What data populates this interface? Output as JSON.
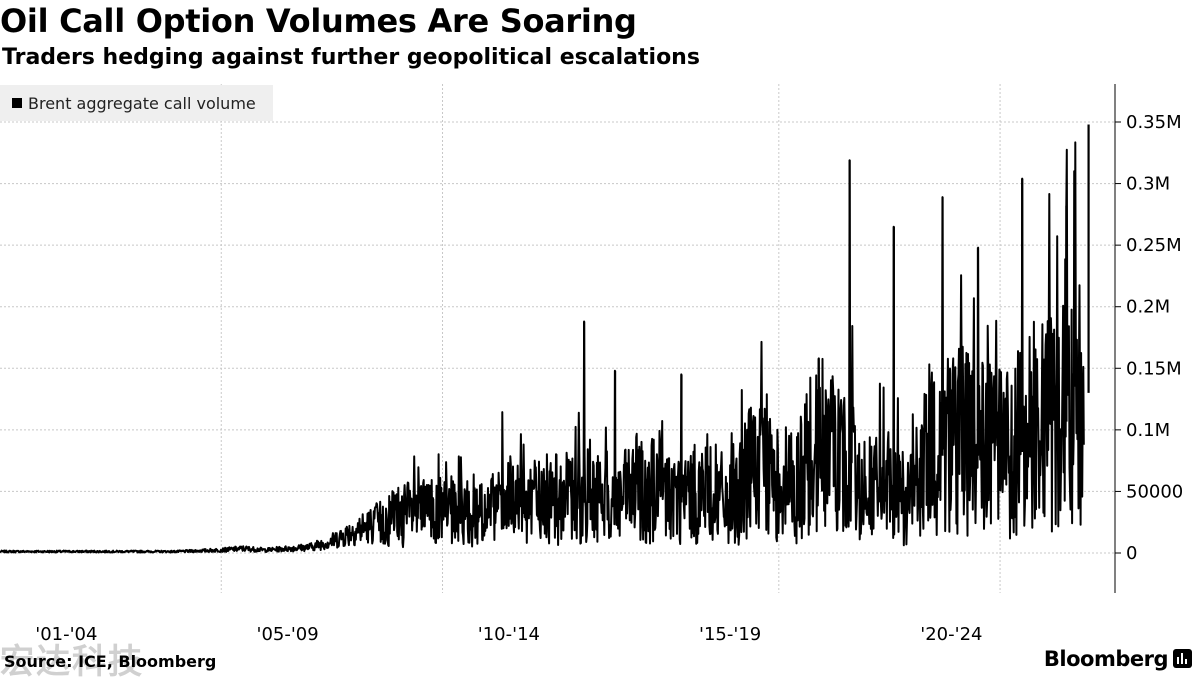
{
  "chart_data": {
    "type": "line",
    "title": "Oil Call Option Volumes Are Soaring",
    "subtitle": "Traders hedging against further geopolitical escalations",
    "xlabel": "",
    "ylabel": "",
    "ylim": [
      0,
      0.35
    ],
    "ytick_values": [
      0,
      0.05,
      0.1,
      0.15,
      0.2,
      0.25,
      0.3,
      0.35
    ],
    "yticks": [
      "0",
      "50000",
      "0.1M",
      "0.15M",
      "0.2M",
      "0.25M",
      "0.3M",
      "0.35M"
    ],
    "xlim": [
      2001.0,
      2025.7
    ],
    "xtick_values": [
      2002.5,
      2007.5,
      2012.5,
      2017.5,
      2022.5
    ],
    "xticks": [
      "'01-'04",
      "'05-'09",
      "'10-'14",
      "'15-'19",
      "'20-'24"
    ],
    "grid": true,
    "legend_position": "top-left",
    "series": [
      {
        "name": "Brent aggregate call volume",
        "color": "#000000",
        "x": [
          2001.0,
          2003.0,
          2005.0,
          2006.0,
          2006.5,
          2007.0,
          2007.5,
          2008.0,
          2008.5,
          2009.0,
          2009.5,
          2010.0,
          2010.5,
          2011.0,
          2011.5,
          2012.0,
          2012.5,
          2013.0,
          2013.5,
          2014.0,
          2014.5,
          2015.0,
          2015.5,
          2016.0,
          2016.5,
          2017.0,
          2017.5,
          2018.0,
          2018.5,
          2019.0,
          2019.5,
          2020.0,
          2020.5,
          2021.0,
          2021.5,
          2022.0,
          2022.5,
          2023.0,
          2023.5,
          2024.0,
          2024.5,
          2025.0,
          2025.3,
          2025.5
        ],
        "y": [
          0.001,
          0.001,
          0.001,
          0.002,
          0.003,
          0.002,
          0.003,
          0.004,
          0.008,
          0.015,
          0.02,
          0.028,
          0.03,
          0.03,
          0.032,
          0.03,
          0.035,
          0.038,
          0.04,
          0.04,
          0.042,
          0.038,
          0.05,
          0.045,
          0.04,
          0.048,
          0.035,
          0.06,
          0.055,
          0.05,
          0.08,
          0.07,
          0.05,
          0.045,
          0.04,
          0.07,
          0.085,
          0.08,
          0.075,
          0.08,
          0.09,
          0.1,
          0.12,
          0.13
        ],
        "peaks": [
          {
            "x": 2014.2,
            "y": 0.188
          },
          {
            "x": 2014.9,
            "y": 0.148
          },
          {
            "x": 2016.4,
            "y": 0.145
          },
          {
            "x": 2019.5,
            "y": 0.158
          },
          {
            "x": 2020.2,
            "y": 0.319
          },
          {
            "x": 2021.2,
            "y": 0.265
          },
          {
            "x": 2022.3,
            "y": 0.289
          },
          {
            "x": 2023.1,
            "y": 0.248
          },
          {
            "x": 2024.1,
            "y": 0.304
          },
          {
            "x": 2025.1,
            "y": 0.282
          },
          {
            "x": 2025.6,
            "y": 0.348
          }
        ]
      }
    ]
  },
  "source": "Source: ICE, Bloomberg",
  "brand": "Bloomberg",
  "watermark": "宏达科技"
}
